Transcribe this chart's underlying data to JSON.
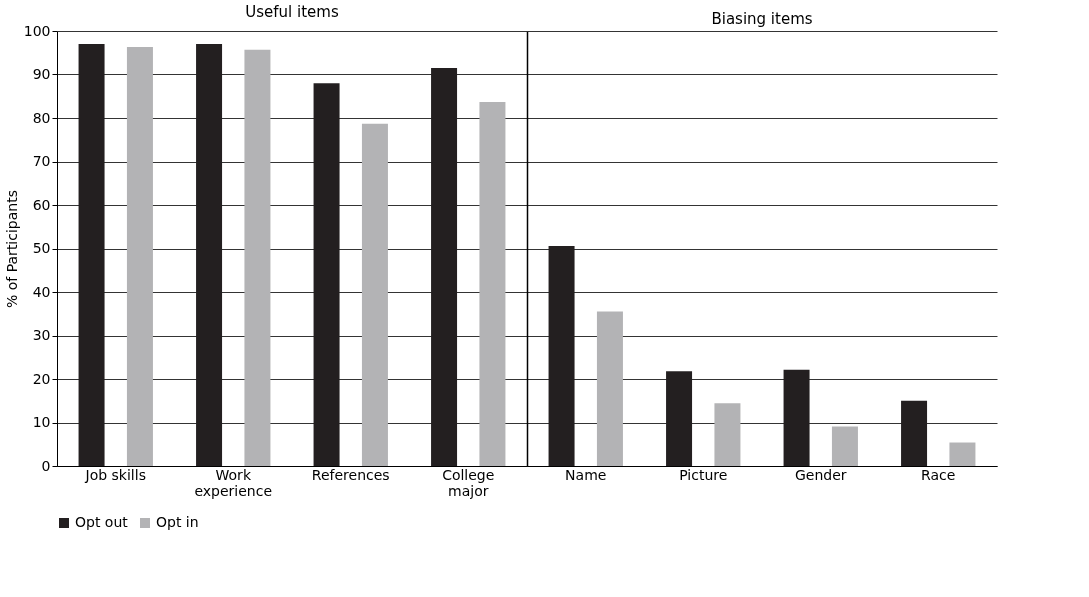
{
  "chart_data": [
    {
      "type": "bar",
      "title": "Useful items",
      "ylabel": "% of Participants",
      "categories": [
        "Job skills",
        "Work experience",
        "References",
        "College major"
      ],
      "series": [
        {
          "name": "Opt out",
          "color": "#231f20",
          "values": [
            97,
            97,
            88,
            91.5
          ]
        },
        {
          "name": "Opt in",
          "color": "#b3b3b5",
          "values": [
            96.3,
            95.7,
            78.7,
            83.7
          ]
        }
      ],
      "ylim": [
        0,
        100
      ],
      "yticks": [
        0,
        10,
        20,
        30,
        40,
        50,
        60,
        70,
        80,
        90,
        100
      ],
      "grid": "y",
      "legend": "bottom"
    },
    {
      "type": "bar",
      "title": "Biasing items",
      "categories": [
        "Name",
        "Picture",
        "Gender",
        "Race"
      ],
      "series": [
        {
          "name": "Opt out",
          "color": "#231f20",
          "values": [
            50.6,
            21.8,
            22.1,
            15
          ]
        },
        {
          "name": "Opt in",
          "color": "#b3b3b5",
          "values": [
            35.5,
            14.4,
            9.1,
            5.4
          ]
        }
      ],
      "ylim": [
        0,
        100
      ],
      "yticks": [
        0,
        10,
        20,
        30,
        40,
        50,
        60,
        70,
        80,
        90,
        100
      ],
      "grid": "y",
      "legend": "bottom",
      "tick_labels": "x"
    }
  ]
}
